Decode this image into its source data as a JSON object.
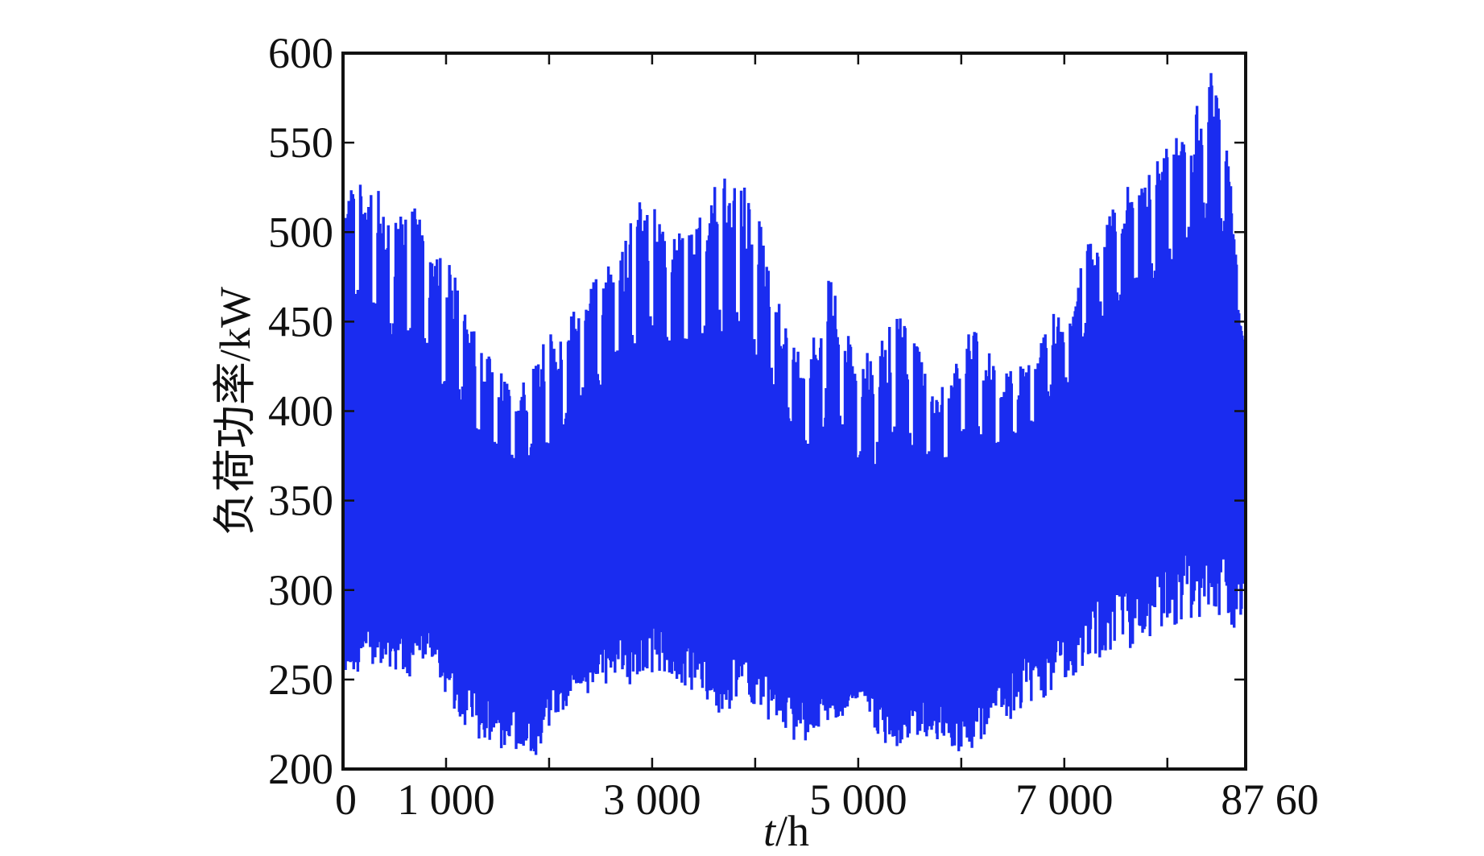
{
  "chart_data": {
    "type": "line",
    "xlabel_var": "t",
    "xlabel_unit": "/h",
    "ylabel": "负荷功率/kW",
    "xlim": [
      0,
      8760
    ],
    "ylim": [
      200,
      600
    ],
    "grid": false,
    "x_ticks": [
      {
        "value": 0,
        "label": "0"
      },
      {
        "value": 1000,
        "label": "1 000"
      },
      {
        "value": 2000,
        "label": ""
      },
      {
        "value": 3000,
        "label": "3 000"
      },
      {
        "value": 4000,
        "label": ""
      },
      {
        "value": 5000,
        "label": "5 000"
      },
      {
        "value": 6000,
        "label": ""
      },
      {
        "value": 7000,
        "label": "7 000"
      },
      {
        "value": 8000,
        "label": ""
      },
      {
        "value": 8760,
        "label": "87 60"
      }
    ],
    "y_ticks": [
      {
        "value": 200,
        "label": "200"
      },
      {
        "value": 250,
        "label": "250"
      },
      {
        "value": 300,
        "label": "300"
      },
      {
        "value": 350,
        "label": "350"
      },
      {
        "value": 400,
        "label": "400"
      },
      {
        "value": 450,
        "label": "450"
      },
      {
        "value": 500,
        "label": "500"
      },
      {
        "value": 550,
        "label": "550"
      },
      {
        "value": 600,
        "label": "600"
      }
    ],
    "series": [
      {
        "color": "#1a2cf0",
        "sampling": "weekly envelope of hourly load (8760 h)",
        "x": [
          0,
          168,
          336,
          504,
          672,
          840,
          1008,
          1176,
          1344,
          1512,
          1680,
          1848,
          2016,
          2184,
          2352,
          2520,
          2688,
          2856,
          3024,
          3192,
          3360,
          3528,
          3696,
          3864,
          4032,
          4200,
          4368,
          4536,
          4704,
          4872,
          5040,
          5208,
          5376,
          5544,
          5712,
          5880,
          6048,
          6216,
          6384,
          6552,
          6720,
          6888,
          7056,
          7224,
          7392,
          7560,
          7728,
          7896,
          8064,
          8232,
          8400,
          8568,
          8736
        ],
        "daily_max": [
          510,
          540,
          525,
          505,
          525,
          495,
          485,
          470,
          435,
          425,
          410,
          430,
          445,
          450,
          470,
          480,
          485,
          520,
          515,
          495,
          505,
          520,
          535,
          530,
          510,
          470,
          440,
          430,
          490,
          450,
          430,
          440,
          455,
          440,
          420,
          410,
          450,
          440,
          420,
          425,
          430,
          455,
          450,
          500,
          510,
          525,
          530,
          540,
          555,
          560,
          595,
          560,
          440
        ],
        "daily_min": [
          250,
          255,
          260,
          255,
          250,
          265,
          240,
          225,
          215,
          210,
          210,
          205,
          225,
          235,
          240,
          245,
          250,
          245,
          255,
          250,
          245,
          235,
          230,
          240,
          235,
          220,
          215,
          215,
          225,
          230,
          240,
          215,
          210,
          220,
          215,
          210,
          205,
          215,
          225,
          230,
          235,
          245,
          250,
          260,
          260,
          265,
          270,
          275,
          275,
          280,
          290,
          280,
          275
        ],
        "base_upper": [
          390,
          400,
          390,
          380,
          375,
          365,
          350,
          345,
          335,
          330,
          330,
          330,
          335,
          345,
          355,
          365,
          375,
          380,
          380,
          380,
          375,
          370,
          365,
          370,
          370,
          355,
          345,
          335,
          330,
          325,
          325,
          320,
          320,
          325,
          330,
          330,
          330,
          335,
          340,
          350,
          360,
          380,
          390,
          405,
          410,
          415,
          420,
          425,
          430,
          435,
          440,
          440,
          440
        ],
        "base_lower": [
          290,
          295,
          300,
          300,
          290,
          290,
          280,
          270,
          265,
          260,
          260,
          260,
          265,
          270,
          275,
          285,
          295,
          300,
          300,
          300,
          295,
          285,
          280,
          285,
          285,
          270,
          260,
          255,
          255,
          250,
          250,
          250,
          250,
          255,
          255,
          260,
          260,
          265,
          270,
          280,
          290,
          300,
          310,
          320,
          325,
          330,
          335,
          340,
          345,
          350,
          355,
          355,
          350
        ]
      }
    ]
  }
}
